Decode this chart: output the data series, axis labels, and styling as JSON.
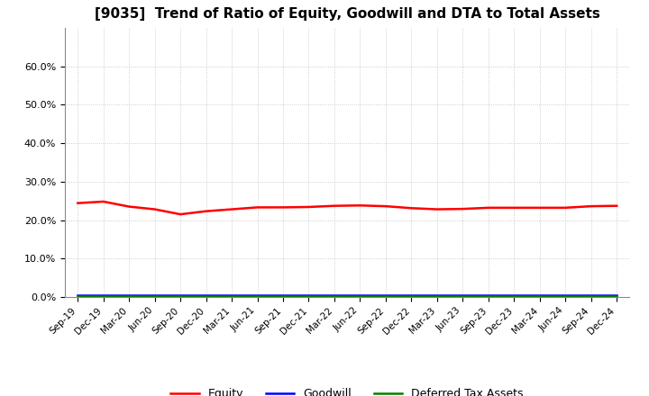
{
  "title": "[9035]  Trend of Ratio of Equity, Goodwill and DTA to Total Assets",
  "x_labels": [
    "Sep-19",
    "Dec-19",
    "Mar-20",
    "Jun-20",
    "Sep-20",
    "Dec-20",
    "Mar-21",
    "Jun-21",
    "Sep-21",
    "Dec-21",
    "Mar-22",
    "Jun-22",
    "Sep-22",
    "Dec-22",
    "Mar-23",
    "Jun-23",
    "Sep-23",
    "Dec-23",
    "Mar-24",
    "Jun-24",
    "Sep-24",
    "Dec-24"
  ],
  "equity": [
    0.244,
    0.248,
    0.235,
    0.228,
    0.215,
    0.223,
    0.228,
    0.233,
    0.233,
    0.234,
    0.237,
    0.238,
    0.236,
    0.231,
    0.228,
    0.229,
    0.232,
    0.232,
    0.232,
    0.232,
    0.236,
    0.237
  ],
  "goodwill": [
    0.005,
    0.005,
    0.005,
    0.005,
    0.005,
    0.005,
    0.005,
    0.005,
    0.005,
    0.005,
    0.005,
    0.005,
    0.005,
    0.005,
    0.005,
    0.005,
    0.005,
    0.005,
    0.005,
    0.005,
    0.005,
    0.005
  ],
  "dta": [
    0.003,
    0.003,
    0.003,
    0.003,
    0.003,
    0.003,
    0.003,
    0.003,
    0.003,
    0.003,
    0.003,
    0.003,
    0.003,
    0.003,
    0.003,
    0.003,
    0.003,
    0.003,
    0.003,
    0.003,
    0.003,
    0.003
  ],
  "equity_color": "#ff0000",
  "goodwill_color": "#0000ff",
  "dta_color": "#008000",
  "ylim": [
    0.0,
    0.7
  ],
  "yticks": [
    0.0,
    0.1,
    0.2,
    0.3,
    0.4,
    0.5,
    0.6
  ],
  "background_color": "#ffffff",
  "plot_bg_color": "#ffffff",
  "grid_color": "#bbbbbb",
  "title_fontsize": 11,
  "legend_labels": [
    "Equity",
    "Goodwill",
    "Deferred Tax Assets"
  ]
}
